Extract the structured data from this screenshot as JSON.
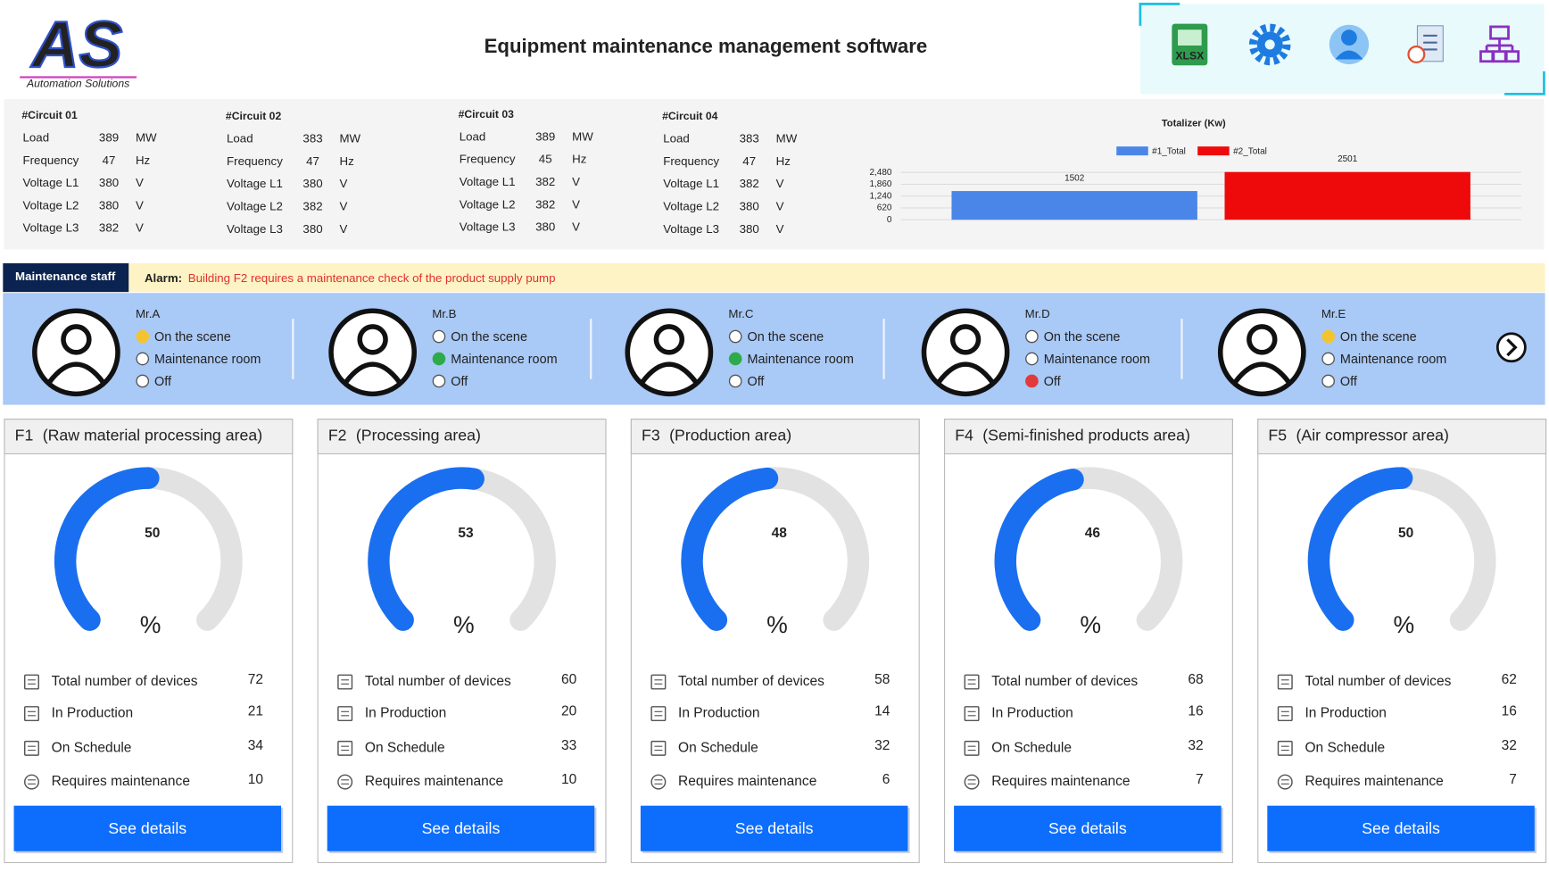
{
  "header": {
    "logo": "AS",
    "logo_subtitle": "Automation Solutions",
    "title": "Equipment maintenance management software",
    "xlsx_label": "XLSX"
  },
  "circuits": [
    {
      "name": "#Circuit 01",
      "rows": [
        {
          "label": "Load",
          "value": 389,
          "unit": "MW"
        },
        {
          "label": "Frequency",
          "value": 47,
          "unit": "Hz"
        },
        {
          "label": "Voltage L1",
          "value": 380,
          "unit": "V"
        },
        {
          "label": "Voltage L2",
          "value": 380,
          "unit": "V"
        },
        {
          "label": "Voltage L3",
          "value": 382,
          "unit": "V"
        }
      ]
    },
    {
      "name": "#Circuit 02",
      "rows": [
        {
          "label": "Load",
          "value": 383,
          "unit": "MW"
        },
        {
          "label": "Frequency",
          "value": 47,
          "unit": "Hz"
        },
        {
          "label": "Voltage L1",
          "value": 380,
          "unit": "V"
        },
        {
          "label": "Voltage L2",
          "value": 382,
          "unit": "V"
        },
        {
          "label": "Voltage L3",
          "value": 380,
          "unit": "V"
        }
      ]
    },
    {
      "name": "#Circuit 03",
      "rows": [
        {
          "label": "Load",
          "value": 389,
          "unit": "MW"
        },
        {
          "label": "Frequency",
          "value": 45,
          "unit": "Hz"
        },
        {
          "label": "Voltage L1",
          "value": 382,
          "unit": "V"
        },
        {
          "label": "Voltage L2",
          "value": 382,
          "unit": "V"
        },
        {
          "label": "Voltage L3",
          "value": 380,
          "unit": "V"
        }
      ]
    },
    {
      "name": "#Circuit 04",
      "rows": [
        {
          "label": "Load",
          "value": 383,
          "unit": "MW"
        },
        {
          "label": "Frequency",
          "value": 47,
          "unit": "Hz"
        },
        {
          "label": "Voltage L1",
          "value": 382,
          "unit": "V"
        },
        {
          "label": "Voltage L2",
          "value": 380,
          "unit": "V"
        },
        {
          "label": "Voltage L3",
          "value": 380,
          "unit": "V"
        }
      ]
    }
  ],
  "chart_data": {
    "type": "bar",
    "title": "Totalizer (Kw)",
    "categories": [
      null
    ],
    "series": [
      {
        "name": "#1_Total",
        "color": "#4a86e8",
        "values": [
          1502
        ]
      },
      {
        "name": "#2_Total",
        "color": "#ee0a0a",
        "values": [
          2501
        ]
      }
    ],
    "ylim": [
      0,
      2800
    ],
    "yticks": [
      0,
      620,
      {
        "value": 1240,
        "label": "1,240"
      },
      {
        "value": 1860,
        "label": "1,860"
      },
      {
        "value": 2480,
        "label": "2,480"
      }
    ],
    "grid": true,
    "legend": "top"
  },
  "staff_bar": {
    "label": "Maintenance staff",
    "alarm_label": "Alarm:",
    "alarm_text": "Building F2 requires a maintenance check of the product supply pump"
  },
  "staff": [
    {
      "name": "Mr.A",
      "options": [
        "On the scene",
        "Maintenance room",
        "Off"
      ],
      "active": 0,
      "active_color": "#f4c430"
    },
    {
      "name": "Mr.B",
      "options": [
        "On the scene",
        "Maintenance room",
        "Off"
      ],
      "active": 1,
      "active_color": "#2eaa4a"
    },
    {
      "name": "Mr.C",
      "options": [
        "On the scene",
        "Maintenance room",
        "Off"
      ],
      "active": 1,
      "active_color": "#2eaa4a"
    },
    {
      "name": "Mr.D",
      "options": [
        "On the scene",
        "Maintenance room",
        "Off"
      ],
      "active": 2,
      "active_color": "#e23a3a"
    },
    {
      "name": "Mr.E",
      "options": [
        "On the scene",
        "Maintenance room",
        "Off"
      ],
      "active": 0,
      "active_color": "#f4c430"
    }
  ],
  "gauge_range": [
    0,
    100
  ],
  "areas": [
    {
      "code": "F1",
      "name": "(Raw material processing area)",
      "gauge_value": 50,
      "unit": "%",
      "stats": [
        {
          "label": "Total number of devices",
          "value": 72
        },
        {
          "label": "In Production",
          "value": 21
        },
        {
          "label": "On Schedule",
          "value": 34
        },
        {
          "label": "Requires maintenance",
          "value": 10
        }
      ],
      "button": "See details"
    },
    {
      "code": "F2",
      "name": "(Processing area)",
      "gauge_value": 53,
      "unit": "%",
      "stats": [
        {
          "label": "Total number of devices",
          "value": 60
        },
        {
          "label": "In Production",
          "value": 20
        },
        {
          "label": "On Schedule",
          "value": 33
        },
        {
          "label": "Requires maintenance",
          "value": 10
        }
      ],
      "button": "See details"
    },
    {
      "code": "F3",
      "name": "(Production area)",
      "gauge_value": 48,
      "unit": "%",
      "stats": [
        {
          "label": "Total number of devices",
          "value": 58
        },
        {
          "label": "In Production",
          "value": 14
        },
        {
          "label": "On Schedule",
          "value": 32
        },
        {
          "label": "Requires maintenance",
          "value": 6
        }
      ],
      "button": "See details"
    },
    {
      "code": "F4",
      "name": "(Semi-finished products area)",
      "gauge_value": 46,
      "unit": "%",
      "stats": [
        {
          "label": "Total number of devices",
          "value": 68
        },
        {
          "label": "In Production",
          "value": 16
        },
        {
          "label": "On Schedule",
          "value": 32
        },
        {
          "label": "Requires maintenance",
          "value": 7
        }
      ],
      "button": "See details"
    },
    {
      "code": "F5",
      "name": "(Air compressor area)",
      "gauge_value": 50,
      "unit": "%",
      "stats": [
        {
          "label": "Total number of devices",
          "value": 62
        },
        {
          "label": "In Production",
          "value": 16
        },
        {
          "label": "On Schedule",
          "value": 32
        },
        {
          "label": "Requires maintenance",
          "value": 7
        }
      ],
      "button": "See details"
    }
  ]
}
